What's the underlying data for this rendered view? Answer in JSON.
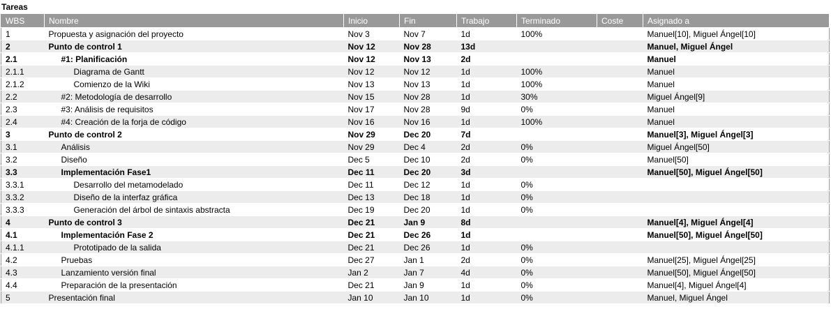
{
  "title": "Tareas",
  "columns": [
    "WBS",
    "Nombre",
    "Inicio",
    "Fin",
    "Trabajo",
    "Terminado",
    "Coste",
    "Asignado a"
  ],
  "rows": [
    {
      "wbs": "1",
      "name": "Propuesta y asignación del proyecto",
      "level": 1,
      "bold": false,
      "start": "Nov 3",
      "end": "Nov 7",
      "work": "1d",
      "done": "100%",
      "cost": "",
      "assigned": "Manuel[10], Miguel Ángel[10]"
    },
    {
      "wbs": "2",
      "name": "Punto de control 1",
      "level": 1,
      "bold": true,
      "start": "Nov 12",
      "end": "Nov 28",
      "work": "13d",
      "done": "",
      "cost": "",
      "assigned": "Manuel, Miguel Ángel"
    },
    {
      "wbs": "2.1",
      "name": "#1: Planificación",
      "level": 2,
      "bold": true,
      "start": "Nov 12",
      "end": "Nov 13",
      "work": "2d",
      "done": "",
      "cost": "",
      "assigned": "Manuel"
    },
    {
      "wbs": "2.1.1",
      "name": "Diagrama de Gantt",
      "level": 3,
      "bold": false,
      "start": "Nov 12",
      "end": "Nov 12",
      "work": "1d",
      "done": "100%",
      "cost": "",
      "assigned": "Manuel"
    },
    {
      "wbs": "2.1.2",
      "name": "Comienzo de la Wiki",
      "level": 3,
      "bold": false,
      "start": "Nov 13",
      "end": "Nov 13",
      "work": "1d",
      "done": "100%",
      "cost": "",
      "assigned": "Manuel"
    },
    {
      "wbs": "2.2",
      "name": "#2: Metodología de desarrollo",
      "level": 2,
      "bold": false,
      "start": "Nov 15",
      "end": "Nov 28",
      "work": "1d",
      "done": "30%",
      "cost": "",
      "assigned": "Miguel Ángel[9]"
    },
    {
      "wbs": "2.3",
      "name": "#3: Análisis de requisitos",
      "level": 2,
      "bold": false,
      "start": "Nov 17",
      "end": "Nov 28",
      "work": "9d",
      "done": "0%",
      "cost": "",
      "assigned": "Manuel"
    },
    {
      "wbs": "2.4",
      "name": "#4: Creación de la forja de código",
      "level": 2,
      "bold": false,
      "start": "Nov 16",
      "end": "Nov 16",
      "work": "1d",
      "done": "100%",
      "cost": "",
      "assigned": "Manuel"
    },
    {
      "wbs": "3",
      "name": "Punto de control 2",
      "level": 1,
      "bold": true,
      "start": "Nov 29",
      "end": "Dec 20",
      "work": "7d",
      "done": "",
      "cost": "",
      "assigned": "Manuel[3], Miguel Ángel[3]"
    },
    {
      "wbs": "3.1",
      "name": "Análisis",
      "level": 2,
      "bold": false,
      "start": "Nov 29",
      "end": "Dec 4",
      "work": "2d",
      "done": "0%",
      "cost": "",
      "assigned": "Miguel Ángel[50]"
    },
    {
      "wbs": "3.2",
      "name": "Diseño",
      "level": 2,
      "bold": false,
      "start": "Dec 5",
      "end": "Dec 10",
      "work": "2d",
      "done": "0%",
      "cost": "",
      "assigned": "Manuel[50]"
    },
    {
      "wbs": "3.3",
      "name": "Implementación Fase1",
      "level": 2,
      "bold": true,
      "start": "Dec 11",
      "end": "Dec 20",
      "work": "3d",
      "done": "",
      "cost": "",
      "assigned": "Manuel[50], Miguel Ángel[50]"
    },
    {
      "wbs": "3.3.1",
      "name": "Desarrollo del metamodelado",
      "level": 3,
      "bold": false,
      "start": "Dec 11",
      "end": "Dec 12",
      "work": "1d",
      "done": "0%",
      "cost": "",
      "assigned": ""
    },
    {
      "wbs": "3.3.2",
      "name": "Diseño de la interfaz gráfica",
      "level": 3,
      "bold": false,
      "start": "Dec 13",
      "end": "Dec 18",
      "work": "1d",
      "done": "0%",
      "cost": "",
      "assigned": ""
    },
    {
      "wbs": "3.3.3",
      "name": "Generación del árbol de sintaxis abstracta",
      "level": 3,
      "bold": false,
      "start": "Dec 19",
      "end": "Dec 20",
      "work": "1d",
      "done": "0%",
      "cost": "",
      "assigned": ""
    },
    {
      "wbs": "4",
      "name": "Punto de control 3",
      "level": 1,
      "bold": true,
      "start": "Dec 21",
      "end": "Jan 9",
      "work": "8d",
      "done": "",
      "cost": "",
      "assigned": "Manuel[4], Miguel Ángel[4]"
    },
    {
      "wbs": "4.1",
      "name": "Implementación Fase 2",
      "level": 2,
      "bold": true,
      "start": "Dec 21",
      "end": "Dec 26",
      "work": "1d",
      "done": "",
      "cost": "",
      "assigned": "Manuel[50], Miguel Ángel[50]"
    },
    {
      "wbs": "4.1.1",
      "name": "Prototipado de la salida",
      "level": 3,
      "bold": false,
      "start": "Dec 21",
      "end": "Dec 26",
      "work": "1d",
      "done": "0%",
      "cost": "",
      "assigned": ""
    },
    {
      "wbs": "4.2",
      "name": "Pruebas",
      "level": 2,
      "bold": false,
      "start": "Dec 27",
      "end": "Jan 1",
      "work": "2d",
      "done": "0%",
      "cost": "",
      "assigned": "Manuel[25], Miguel Ángel[25]"
    },
    {
      "wbs": "4.3",
      "name": "Lanzamiento versión final",
      "level": 2,
      "bold": false,
      "start": "Jan 2",
      "end": "Jan 7",
      "work": "4d",
      "done": "0%",
      "cost": "",
      "assigned": "Manuel[50], Miguel Ángel[50]"
    },
    {
      "wbs": "4.4",
      "name": "Preparación de la presentación",
      "level": 2,
      "bold": false,
      "start": "Dec 21",
      "end": "Jan 9",
      "work": "1d",
      "done": "0%",
      "cost": "",
      "assigned": "Manuel[4], Miguel Ángel[4]"
    },
    {
      "wbs": "5",
      "name": "Presentación final",
      "level": 1,
      "bold": false,
      "start": "Jan 10",
      "end": "Jan 10",
      "work": "1d",
      "done": "0%",
      "cost": "",
      "assigned": "Manuel, Miguel Ángel"
    }
  ]
}
